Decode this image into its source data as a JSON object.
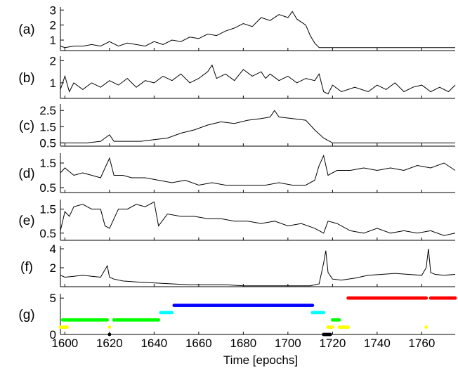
{
  "chart_data": {
    "type": "line",
    "xlabel": "Time [epochs]",
    "xlim": [
      1598,
      1775
    ],
    "x_ticks": [
      1600,
      1620,
      1640,
      1660,
      1680,
      1700,
      1720,
      1740,
      1760
    ],
    "panels": [
      {
        "label": "(a)",
        "type": "line",
        "ylim": [
          0.3,
          3.2
        ],
        "yticks": [
          1,
          2,
          3
        ],
        "series": [
          {
            "x": [
              1598,
              1600,
              1604,
              1608,
              1612,
              1616,
              1620,
              1624,
              1628,
              1632,
              1636,
              1640,
              1644,
              1648,
              1652,
              1656,
              1660,
              1664,
              1668,
              1672,
              1676,
              1680,
              1684,
              1688,
              1692,
              1696,
              1700,
              1702,
              1704,
              1706,
              1708,
              1710,
              1712,
              1714,
              1716,
              1718,
              1720,
              1724,
              1730,
              1740,
              1750,
              1760,
              1770,
              1775
            ],
            "y": [
              0.6,
              0.5,
              0.6,
              0.6,
              0.7,
              0.6,
              0.9,
              0.6,
              0.8,
              0.7,
              0.6,
              0.9,
              0.7,
              1.0,
              0.9,
              1.2,
              1.1,
              1.4,
              1.3,
              1.6,
              1.8,
              2.1,
              1.9,
              2.5,
              2.3,
              2.7,
              2.5,
              2.9,
              2.4,
              2.2,
              2.0,
              1.3,
              0.8,
              0.5,
              0.5,
              0.5,
              0.5,
              0.5,
              0.5,
              0.5,
              0.5,
              0.5,
              0.5,
              0.5
            ]
          }
        ]
      },
      {
        "label": "(b)",
        "type": "line",
        "ylim": [
          0.3,
          2.2
        ],
        "yticks": [
          1,
          2
        ],
        "series": [
          {
            "x": [
              1598,
              1600,
              1602,
              1604,
              1608,
              1612,
              1616,
              1620,
              1624,
              1628,
              1632,
              1636,
              1640,
              1644,
              1648,
              1652,
              1656,
              1660,
              1664,
              1666,
              1668,
              1672,
              1676,
              1680,
              1684,
              1688,
              1690,
              1692,
              1696,
              1700,
              1704,
              1708,
              1712,
              1714,
              1716,
              1718,
              1720,
              1724,
              1730,
              1736,
              1740,
              1744,
              1748,
              1752,
              1756,
              1760,
              1764,
              1768,
              1772,
              1775
            ],
            "y": [
              0.7,
              1.3,
              0.6,
              1.0,
              0.7,
              1.0,
              0.8,
              1.1,
              0.9,
              1.2,
              0.8,
              1.1,
              1.0,
              1.3,
              1.1,
              1.4,
              1.0,
              1.2,
              1.5,
              1.8,
              1.2,
              1.4,
              1.1,
              1.6,
              1.3,
              1.5,
              1.2,
              1.4,
              1.1,
              1.3,
              1.0,
              1.2,
              1.1,
              1.4,
              0.6,
              0.5,
              0.9,
              0.6,
              0.8,
              0.6,
              0.9,
              0.7,
              1.0,
              0.6,
              0.8,
              0.9,
              0.6,
              0.8,
              0.6,
              0.9
            ]
          }
        ]
      },
      {
        "label": "(c)",
        "type": "line",
        "ylim": [
          0.3,
          2.9
        ],
        "yticks": [
          0.5,
          1.5,
          2.5
        ],
        "series": [
          {
            "x": [
              1598,
              1604,
              1610,
              1616,
              1618,
              1620,
              1622,
              1628,
              1634,
              1640,
              1646,
              1652,
              1658,
              1664,
              1670,
              1676,
              1682,
              1688,
              1692,
              1694,
              1696,
              1702,
              1708,
              1712,
              1716,
              1720,
              1726,
              1736,
              1746,
              1756,
              1766,
              1775
            ],
            "y": [
              0.5,
              0.5,
              0.5,
              0.6,
              0.8,
              1.0,
              0.6,
              0.6,
              0.6,
              0.7,
              0.8,
              1.1,
              1.3,
              1.6,
              1.8,
              1.7,
              1.9,
              2.0,
              2.1,
              2.5,
              2.1,
              2.0,
              1.9,
              1.3,
              0.8,
              0.5,
              0.5,
              0.5,
              0.5,
              0.5,
              0.5,
              0.5
            ]
          }
        ]
      },
      {
        "label": "(d)",
        "type": "line",
        "ylim": [
          0.3,
          1.9
        ],
        "yticks": [
          0.5,
          1.5
        ],
        "series": [
          {
            "x": [
              1598,
              1600,
              1604,
              1608,
              1612,
              1616,
              1620,
              1622,
              1626,
              1630,
              1636,
              1642,
              1648,
              1654,
              1660,
              1666,
              1672,
              1678,
              1684,
              1690,
              1696,
              1702,
              1708,
              1712,
              1714,
              1716,
              1718,
              1722,
              1728,
              1734,
              1740,
              1746,
              1752,
              1758,
              1764,
              1770,
              1775
            ],
            "y": [
              1.1,
              1.3,
              1.0,
              1.1,
              1.0,
              0.9,
              1.7,
              1.0,
              1.0,
              0.9,
              0.9,
              0.8,
              0.7,
              0.8,
              0.6,
              0.7,
              0.6,
              0.6,
              0.6,
              0.6,
              0.7,
              0.6,
              0.6,
              0.8,
              1.4,
              1.8,
              1.0,
              1.2,
              1.2,
              1.3,
              1.2,
              1.3,
              1.2,
              1.4,
              1.3,
              1.5,
              1.2
            ]
          }
        ]
      },
      {
        "label": "(e)",
        "type": "line",
        "ylim": [
          0.2,
          1.9
        ],
        "yticks": [
          0.5,
          1.5
        ],
        "series": [
          {
            "x": [
              1598,
              1600,
              1602,
              1604,
              1608,
              1612,
              1616,
              1618,
              1620,
              1624,
              1628,
              1632,
              1636,
              1640,
              1642,
              1646,
              1652,
              1658,
              1664,
              1670,
              1676,
              1682,
              1688,
              1694,
              1700,
              1706,
              1712,
              1716,
              1718,
              1722,
              1728,
              1734,
              1740,
              1746,
              1752,
              1758,
              1764,
              1770,
              1775
            ],
            "y": [
              0.6,
              1.4,
              1.2,
              1.6,
              1.7,
              1.5,
              1.5,
              0.8,
              0.7,
              1.5,
              1.5,
              1.7,
              1.6,
              1.8,
              0.8,
              1.3,
              1.2,
              1.2,
              1.1,
              1.1,
              1.0,
              1.0,
              0.9,
              1.0,
              0.8,
              0.9,
              0.7,
              0.5,
              1.0,
              0.9,
              0.6,
              0.5,
              0.7,
              0.5,
              0.6,
              0.5,
              0.6,
              0.4,
              0.5
            ]
          }
        ]
      },
      {
        "label": "(f)",
        "type": "line",
        "ylim": [
          0,
          4.3
        ],
        "yticks": [
          2,
          4
        ],
        "series": [
          {
            "x": [
              1598,
              1600,
              1604,
              1608,
              1612,
              1616,
              1619,
              1620,
              1622,
              1626,
              1632,
              1640,
              1648,
              1656,
              1664,
              1672,
              1680,
              1688,
              1696,
              1704,
              1710,
              1714,
              1716,
              1717,
              1718,
              1720,
              1724,
              1730,
              1736,
              1742,
              1748,
              1754,
              1760,
              1762,
              1763,
              1764,
              1766,
              1770,
              1775
            ],
            "y": [
              1.2,
              1.0,
              1.1,
              1.2,
              1.1,
              1.0,
              2.2,
              1.0,
              0.8,
              0.6,
              0.5,
              0.4,
              0.3,
              0.2,
              0.2,
              0.2,
              0.1,
              0.1,
              0.1,
              0.1,
              0.1,
              0.3,
              2.5,
              3.8,
              1.5,
              0.8,
              0.7,
              0.9,
              1.2,
              1.3,
              1.4,
              1.3,
              1.2,
              2.0,
              4.0,
              1.5,
              1.3,
              1.2,
              1.3
            ]
          }
        ]
      },
      {
        "label": "(g)",
        "type": "scatter",
        "ylim": [
          0,
          5.6
        ],
        "yticks": [
          0,
          5
        ],
        "segments": [
          {
            "color": "#ffff00",
            "y": 1,
            "x_start": 1598,
            "x_end": 1601
          },
          {
            "color": "#00ff00",
            "y": 2,
            "x_start": 1599,
            "x_end": 1619
          },
          {
            "color": "#000000",
            "y": 0,
            "x_start": 1620,
            "x_end": 1620
          },
          {
            "color": "#ffff00",
            "y": 1,
            "x_start": 1620,
            "x_end": 1620
          },
          {
            "color": "#00ff00",
            "y": 2,
            "x_start": 1622,
            "x_end": 1642
          },
          {
            "color": "#00ffff",
            "y": 3,
            "x_start": 1643,
            "x_end": 1648
          },
          {
            "color": "#0000ff",
            "y": 4,
            "x_start": 1649,
            "x_end": 1711
          },
          {
            "color": "#00ffff",
            "y": 3,
            "x_start": 1711,
            "x_end": 1716
          },
          {
            "color": "#000000",
            "y": 0,
            "x_start": 1716,
            "x_end": 1719
          },
          {
            "color": "#ffff00",
            "y": 1,
            "x_start": 1718,
            "x_end": 1720
          },
          {
            "color": "#00ff00",
            "y": 2,
            "x_start": 1720,
            "x_end": 1723
          },
          {
            "color": "#ffff00",
            "y": 1,
            "x_start": 1723,
            "x_end": 1727
          },
          {
            "color": "#ff0000",
            "y": 5,
            "x_start": 1727,
            "x_end": 1762
          },
          {
            "color": "#ffff00",
            "y": 1,
            "x_start": 1762,
            "x_end": 1762
          },
          {
            "color": "#ff0000",
            "y": 5,
            "x_start": 1764,
            "x_end": 1775
          }
        ]
      }
    ]
  }
}
